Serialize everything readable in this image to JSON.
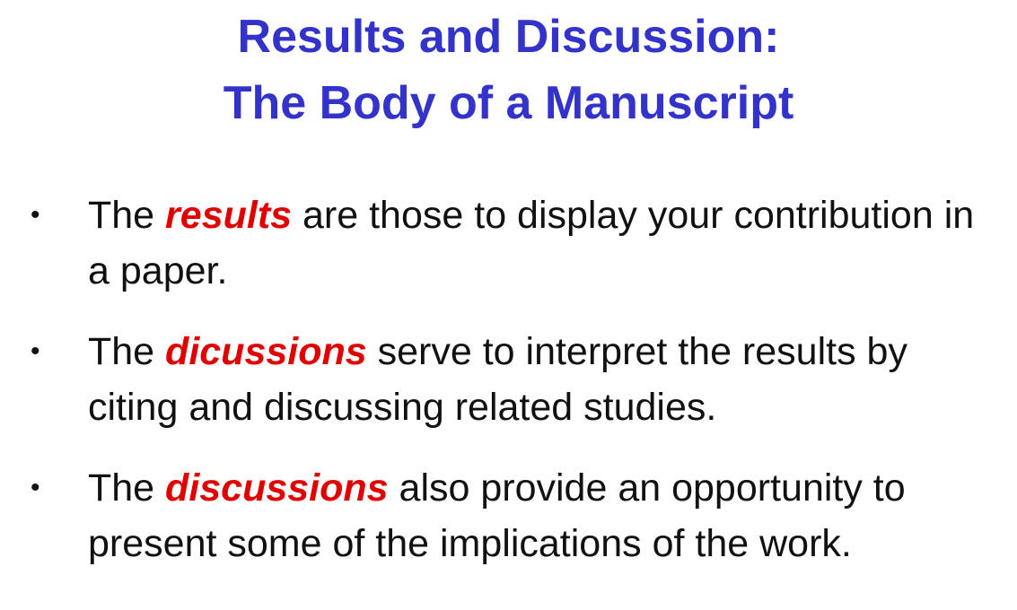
{
  "title": {
    "line1": "Results and Discussion:",
    "line2": "The Body of a Manuscript"
  },
  "bullets": [
    {
      "prefix": "The ",
      "emphasis": "results",
      "suffix": " are those to display your contribution in a paper."
    },
    {
      "prefix": "The ",
      "emphasis": "dicussions",
      "suffix": " serve to interpret the results by citing and discussing related studies."
    },
    {
      "prefix": "The ",
      "emphasis": "discussions",
      "suffix": " also provide an opportunity to present some of the implications of the work."
    }
  ],
  "bullet_symbol": "•",
  "colors": {
    "title": "#3333cc",
    "emphasis": "#e00000",
    "body_text": "#111111",
    "background": "#ffffff"
  }
}
